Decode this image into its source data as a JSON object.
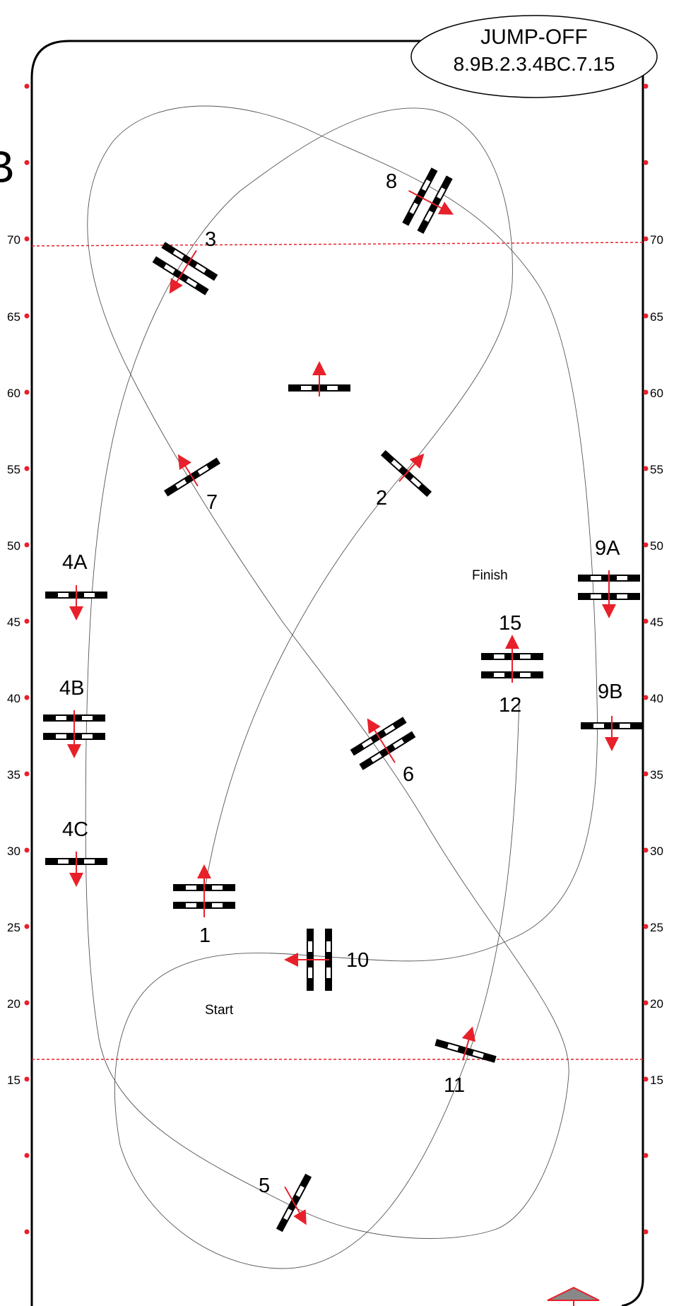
{
  "title_box": {
    "line1": "JUMP-OFF",
    "line2": "8.9B.2.3.4BC.7.15"
  },
  "corner_fragment": "B",
  "markers": {
    "start": "Start",
    "finish": "Finish"
  },
  "scale_ticks": [
    "70",
    "65",
    "60",
    "55",
    "50",
    "45",
    "40",
    "35",
    "30",
    "25",
    "20",
    "15"
  ],
  "obstacles": [
    {
      "label": "1"
    },
    {
      "label": "2"
    },
    {
      "label": "3"
    },
    {
      "label": "4A"
    },
    {
      "label": "4B"
    },
    {
      "label": "4C"
    },
    {
      "label": "5"
    },
    {
      "label": "6"
    },
    {
      "label": "7"
    },
    {
      "label": "8"
    },
    {
      "label": "9A"
    },
    {
      "label": "9B"
    },
    {
      "label": "10"
    },
    {
      "label": "11"
    },
    {
      "label": "12"
    },
    {
      "label": "15"
    }
  ],
  "colors": {
    "rail_red": "#e8202a",
    "ink": "#000000",
    "path": "#555555",
    "entry": "#888888"
  }
}
